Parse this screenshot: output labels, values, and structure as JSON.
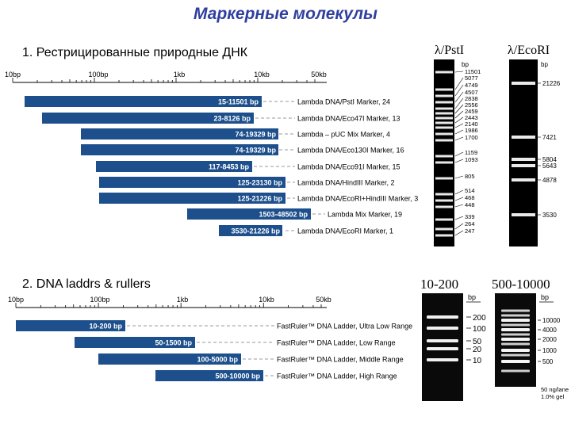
{
  "title": "Маркерные молекулы",
  "section1": {
    "heading": "1. Рестрицированные природные ДНК",
    "scale_labels": [
      "10bp",
      "100bp",
      "1kb",
      "10kb",
      "50kb"
    ],
    "markers": [
      {
        "range": "15-11501 bp",
        "name": "Lambda DNA/PstI Marker, 24"
      },
      {
        "range": "23-8126 bp",
        "name": "Lambda DNA/Eco47I Marker, 13"
      },
      {
        "range": "74-19329 bp",
        "name": "Lambda – pUC Mix Marker, 4"
      },
      {
        "range": "74-19329 bp",
        "name": "Lambda DNA/Eco130I Marker, 16"
      },
      {
        "range": "117-8453 bp",
        "name": "Lambda DNA/Eco91I Marker, 15"
      },
      {
        "range": "125-23130 bp",
        "name": "Lambda DNA/HindIII Marker, 2"
      },
      {
        "range": "125-21226 bp",
        "name": "Lambda DNA/EcoRI+HindIII Marker, 3"
      },
      {
        "range": "1503-48502 bp",
        "name": "Lambda Mix Marker, 19"
      },
      {
        "range": "3530-21226 bp",
        "name": "Lambda DNA/EcoRI Marker, 1"
      }
    ]
  },
  "section2": {
    "heading": "2. DNA laddrs & rullers",
    "scale_labels": [
      "10bp",
      "100bp",
      "1kb",
      "10kb",
      "50kb"
    ],
    "markers": [
      {
        "range": "10-200 bp",
        "name": "FastRuler™ DNA Ladder, Ultra Low Range"
      },
      {
        "range": "50-1500 bp",
        "name": "FastRuler™ DNA Ladder, Low Range"
      },
      {
        "range": "100-5000 bp",
        "name": "FastRuler™ DNA Ladder, Middle Range"
      },
      {
        "range": "500-10000 bp",
        "name": "FastRuler™ DNA Ladder, High Range"
      }
    ]
  },
  "gels": {
    "pst": {
      "title": "λ/PstI",
      "unit": "bp",
      "labels": [
        "11501",
        "5077",
        "4749",
        "4507",
        "2838",
        "2556",
        "2459",
        "2443",
        "2140",
        "1986",
        "1700",
        "1159",
        "1093",
        "805",
        "514",
        "468",
        "448",
        "339",
        "264",
        "247"
      ]
    },
    "eco": {
      "title": "λ/EcoRI",
      "unit": "bp",
      "labels": [
        "21226",
        "7421",
        "5804",
        "5643",
        "4878",
        "3530"
      ]
    },
    "ulr": {
      "title": "10-200",
      "unit": "bp",
      "labels": [
        "200",
        "100",
        "50",
        "20",
        "10"
      ]
    },
    "hr": {
      "title": "500-10000",
      "unit": "bp",
      "labels": [
        "10000",
        "4000",
        "2000",
        "1000",
        "500"
      ],
      "footnote": [
        "50 ng/lane",
        "1.0% gel"
      ]
    }
  }
}
